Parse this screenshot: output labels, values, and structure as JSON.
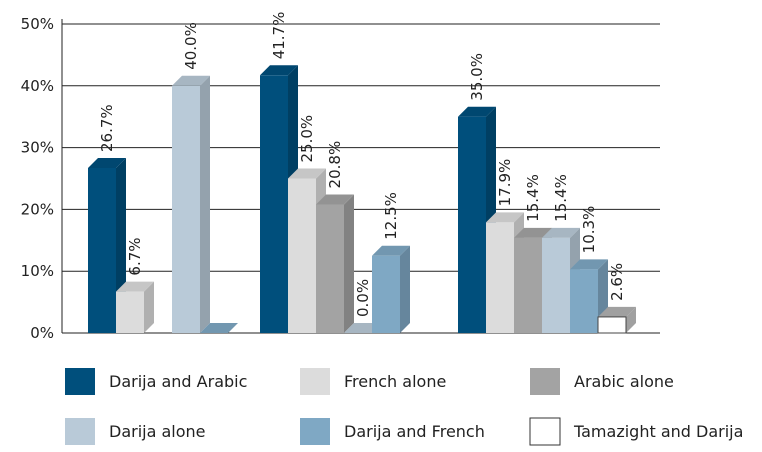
{
  "chart_data": {
    "type": "bar3d",
    "categories": [
      null,
      null,
      null
    ],
    "series": [
      {
        "name": "Darija and Arabic",
        "color": "#004f7c",
        "values": [
          26.7,
          41.7,
          35.0
        ],
        "value_labels": [
          "26.7%",
          "41.7%",
          "35.0%"
        ]
      },
      {
        "name": "French alone",
        "color": "#dcdcdc",
        "values": [
          6.7,
          25.0,
          17.9
        ],
        "value_labels": [
          "6.7%",
          "25.0%",
          "17.9%"
        ]
      },
      {
        "name": "Arabic alone",
        "color": "#a3a3a3",
        "values": [
          null,
          20.8,
          15.4
        ],
        "value_labels": [
          null,
          "20.8%",
          "15.4%"
        ]
      },
      {
        "name": "Darija alone",
        "color": "#b9cad8",
        "values": [
          40.0,
          0.0,
          15.4
        ],
        "value_labels": [
          "40.0%",
          "0.0%",
          "15.4%"
        ]
      },
      {
        "name": "Darija and French",
        "color": "#7fa8c4",
        "values": [
          0,
          12.5,
          10.3
        ],
        "value_labels": [
          null,
          "12.5%",
          "10.3%"
        ]
      },
      {
        "name": "Tamazight and Darija",
        "color": "#ffffff",
        "values": [
          null,
          null,
          2.6
        ],
        "value_labels": [
          null,
          null,
          "2.6%"
        ]
      }
    ],
    "ylim": [
      0,
      50
    ],
    "yticks": [
      {
        "value": 0,
        "label": "0%"
      },
      {
        "value": 10,
        "label": "10%"
      },
      {
        "value": 20,
        "label": "20%"
      },
      {
        "value": 30,
        "label": "30%"
      },
      {
        "value": 40,
        "label": "40%"
      },
      {
        "value": 50,
        "label": "50%"
      }
    ],
    "grid": true
  }
}
